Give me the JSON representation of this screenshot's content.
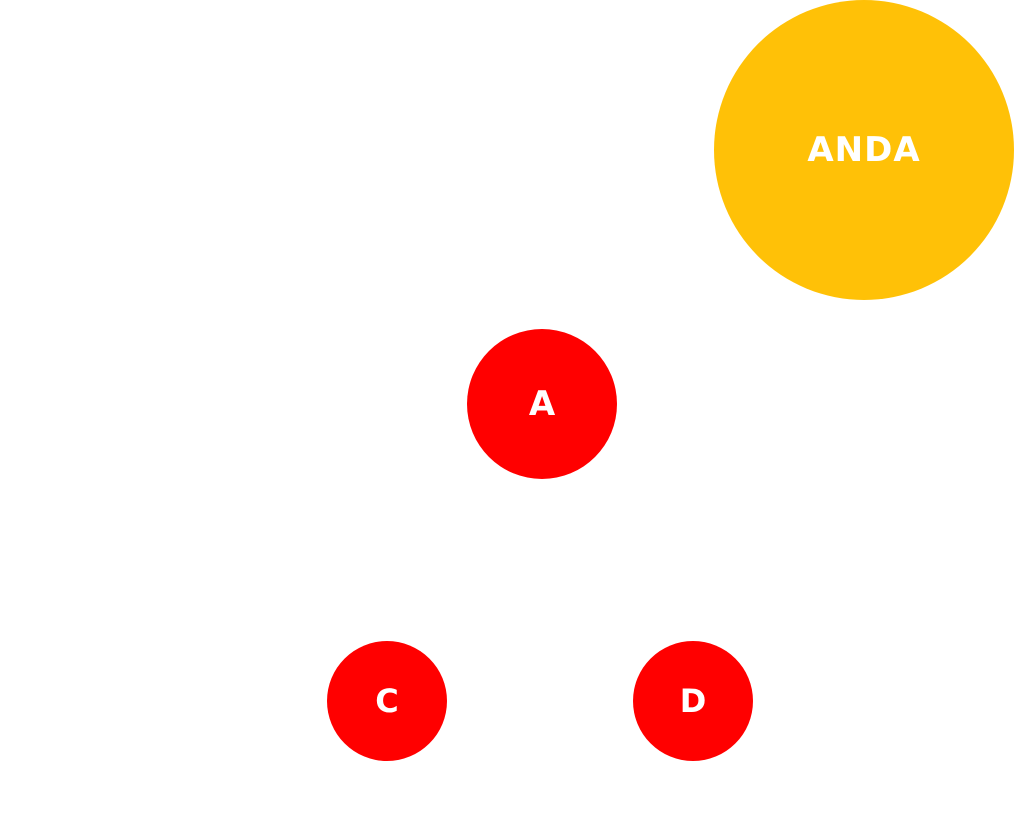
{
  "player": {
    "label": "ANDA",
    "color": "#FFC107"
  },
  "options": {
    "a": {
      "label": "A",
      "color": "#FF0000"
    },
    "c": {
      "label": "C",
      "color": "#FF0000"
    },
    "d": {
      "label": "D",
      "color": "#FF0000"
    }
  },
  "background_color": "#FFFFFF"
}
